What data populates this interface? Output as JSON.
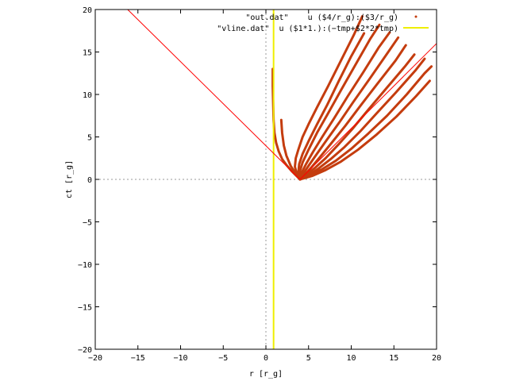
{
  "chart_data": {
    "type": "scatter",
    "title": "",
    "xlabel": "r [r_g]",
    "ylabel": "ct [r_g]",
    "xlim": [
      -20,
      20
    ],
    "ylim": [
      -20,
      20
    ],
    "xticks": [
      -20,
      -15,
      -10,
      -5,
      0,
      5,
      10,
      15,
      20
    ],
    "yticks": [
      -20,
      -15,
      -10,
      -5,
      0,
      5,
      10,
      15,
      20
    ],
    "tick_labels_x": [
      "−20",
      "−15",
      "−10",
      "−5",
      "0",
      "5",
      "10",
      "15",
      "20"
    ],
    "tick_labels_y": [
      "−20",
      "−15",
      "−10",
      "−5",
      "0",
      "5",
      "10",
      "15",
      "20"
    ],
    "grid": false,
    "zero_axes": true,
    "legend_position": "top-right",
    "legend": [
      {
        "label": "\"out.dat\"    u ($4/r_g):($3/r_g)",
        "color": "#c43c0e",
        "style": "points"
      },
      {
        "label": "\"vline.dat\"  u ($1*1.):(−tmp+$2*2*tmp)",
        "color": "#eeee00",
        "style": "line"
      }
    ],
    "series": [
      {
        "kind": "scatter-curves",
        "color": "#c43c0e",
        "curves": [
          [
            [
              4.0,
              0.0
            ],
            [
              3.5,
              0.5
            ],
            [
              3.0,
              1.0
            ],
            [
              2.4,
              1.7
            ],
            [
              1.9,
              2.4
            ],
            [
              1.5,
              3.3
            ],
            [
              1.2,
              4.3
            ],
            [
              1.0,
              5.5
            ],
            [
              0.9,
              7.0
            ],
            [
              0.85,
              9.0
            ],
            [
              0.8,
              11.0
            ],
            [
              0.8,
              13.0
            ]
          ],
          [
            [
              4.0,
              0.0
            ],
            [
              3.4,
              0.8
            ],
            [
              2.9,
              1.6
            ],
            [
              2.4,
              2.8
            ],
            [
              2.1,
              4.0
            ],
            [
              1.9,
              5.5
            ],
            [
              1.8,
              7.0
            ]
          ],
          [
            [
              4.0,
              0.0
            ],
            [
              3.6,
              0.7
            ],
            [
              3.4,
              1.5
            ],
            [
              3.5,
              2.5
            ],
            [
              3.8,
              3.5
            ],
            [
              4.3,
              5.0
            ],
            [
              5.0,
              6.5
            ],
            [
              6.0,
              8.5
            ],
            [
              7.3,
              11.0
            ],
            [
              8.8,
              14.0
            ],
            [
              10.3,
              17.0
            ],
            [
              11.3,
              19.2
            ]
          ],
          [
            [
              4.0,
              0.0
            ],
            [
              3.8,
              0.8
            ],
            [
              3.9,
              1.8
            ],
            [
              4.3,
              3.0
            ],
            [
              5.0,
              4.5
            ],
            [
              6.0,
              6.5
            ],
            [
              7.2,
              8.8
            ],
            [
              8.5,
              11.5
            ],
            [
              10.0,
              14.5
            ],
            [
              11.5,
              17.2
            ]
          ],
          [
            [
              4.0,
              0.0
            ],
            [
              4.0,
              1.0
            ],
            [
              4.3,
              2.0
            ],
            [
              5.0,
              3.5
            ],
            [
              6.0,
              5.5
            ],
            [
              7.3,
              7.8
            ],
            [
              8.8,
              10.5
            ],
            [
              10.5,
              13.5
            ],
            [
              12.2,
              16.5
            ],
            [
              13.3,
              18.2
            ]
          ],
          [
            [
              4.0,
              0.0
            ],
            [
              4.2,
              0.8
            ],
            [
              4.7,
              1.8
            ],
            [
              5.5,
              3.2
            ],
            [
              6.6,
              5.0
            ],
            [
              8.0,
              7.2
            ],
            [
              9.6,
              9.8
            ],
            [
              11.4,
              12.6
            ],
            [
              13.2,
              15.5
            ],
            [
              14.5,
              17.3
            ]
          ],
          [
            [
              4.0,
              0.0
            ],
            [
              4.4,
              0.7
            ],
            [
              5.0,
              1.6
            ],
            [
              5.9,
              2.9
            ],
            [
              7.1,
              4.6
            ],
            [
              8.6,
              6.7
            ],
            [
              10.3,
              9.2
            ],
            [
              12.2,
              11.9
            ],
            [
              14.2,
              14.8
            ],
            [
              15.5,
              16.7
            ]
          ],
          [
            [
              4.0,
              0.0
            ],
            [
              4.6,
              0.6
            ],
            [
              5.4,
              1.5
            ],
            [
              6.4,
              2.7
            ],
            [
              7.7,
              4.3
            ],
            [
              9.3,
              6.3
            ],
            [
              11.1,
              8.7
            ],
            [
              13.1,
              11.3
            ],
            [
              15.2,
              14.0
            ],
            [
              16.4,
              15.8
            ]
          ],
          [
            [
              4.0,
              0.0
            ],
            [
              4.8,
              0.6
            ],
            [
              5.8,
              1.4
            ],
            [
              7.0,
              2.5
            ],
            [
              8.4,
              4.0
            ],
            [
              10.1,
              5.9
            ],
            [
              12.0,
              8.2
            ],
            [
              14.1,
              10.7
            ],
            [
              16.3,
              13.3
            ],
            [
              17.4,
              14.7
            ]
          ],
          [
            [
              4.0,
              0.0
            ],
            [
              5.0,
              0.5
            ],
            [
              6.2,
              1.3
            ],
            [
              7.6,
              2.4
            ],
            [
              9.2,
              3.8
            ],
            [
              11.0,
              5.6
            ],
            [
              13.0,
              7.8
            ],
            [
              15.2,
              10.2
            ],
            [
              17.5,
              12.8
            ],
            [
              18.6,
              14.2
            ]
          ],
          [
            [
              4.0,
              0.0
            ],
            [
              5.2,
              0.5
            ],
            [
              6.6,
              1.2
            ],
            [
              8.2,
              2.2
            ],
            [
              10.0,
              3.6
            ],
            [
              12.0,
              5.4
            ],
            [
              14.2,
              7.5
            ],
            [
              16.5,
              10.0
            ],
            [
              18.6,
              12.5
            ],
            [
              19.4,
              13.3
            ]
          ],
          [
            [
              4.0,
              0.0
            ],
            [
              5.4,
              0.4
            ],
            [
              7.0,
              1.1
            ],
            [
              8.8,
              2.1
            ],
            [
              10.8,
              3.5
            ],
            [
              13.0,
              5.3
            ],
            [
              15.3,
              7.4
            ],
            [
              17.6,
              9.8
            ],
            [
              19.2,
              11.6
            ]
          ]
        ]
      },
      {
        "kind": "vline",
        "color": "#eeee00",
        "x": 0.9,
        "y_range": [
          -20,
          20
        ]
      },
      {
        "kind": "light-cone",
        "color": "#ff0000",
        "lines": [
          [
            [
              -16.2,
              20
            ],
            [
              4.0,
              0.0
            ]
          ],
          [
            [
              4.0,
              0.0
            ],
            [
              20,
              16.0
            ]
          ]
        ]
      }
    ]
  }
}
